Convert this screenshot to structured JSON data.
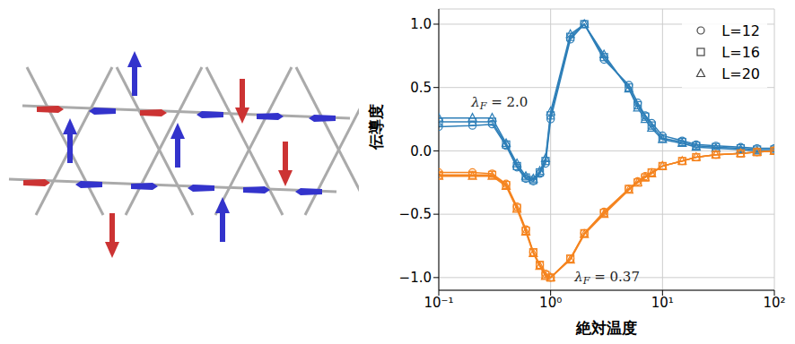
{
  "chart_data": {
    "type": "line",
    "xlabel": "絶対温度",
    "ylabel": "伝導度",
    "log": "x",
    "grid": true,
    "legend": "upper right",
    "xlim": [
      0.1,
      100
    ],
    "xticks": [
      {
        "value": 0.1,
        "label": "10⁻¹"
      },
      {
        "value": 1,
        "label": "10⁰"
      },
      {
        "value": 10,
        "label": "10¹"
      },
      {
        "value": 100,
        "label": "10²"
      }
    ],
    "ylim": [
      -1.1,
      1.12
    ],
    "yticks": [
      {
        "value": -1,
        "label": "−1.0"
      },
      {
        "value": -0.5,
        "label": "−0.5"
      },
      {
        "value": 0,
        "label": "0.0"
      },
      {
        "value": 0.5,
        "label": "0.5"
      },
      {
        "value": 1,
        "label": "1.0"
      }
    ],
    "x": [
      0.1,
      0.2,
      0.3,
      0.4,
      0.5,
      0.6,
      0.7,
      0.8,
      0.9,
      1.0,
      1.5,
      2,
      3,
      5,
      6,
      7,
      8,
      10,
      15,
      20,
      30,
      50,
      70,
      100
    ],
    "series": [
      {
        "name": "L=12",
        "marker": "circle",
        "color": "#2e7fb8",
        "values": [
          0.19,
          0.2,
          0.21,
          0.04,
          -0.13,
          -0.22,
          -0.24,
          -0.18,
          -0.1,
          0.25,
          0.88,
          1.0,
          0.72,
          0.52,
          0.38,
          0.28,
          0.22,
          0.12,
          0.08,
          0.05,
          0.04,
          0.03,
          0.02,
          0.02
        ]
      },
      {
        "name": "L=16",
        "marker": "square",
        "color": "#2e7fb8",
        "values": [
          0.23,
          0.23,
          0.23,
          0.05,
          -0.12,
          -0.21,
          -0.23,
          -0.17,
          -0.08,
          0.28,
          0.9,
          1.0,
          0.74,
          0.5,
          0.36,
          0.27,
          0.2,
          0.1,
          0.07,
          0.04,
          0.03,
          0.02,
          0.01,
          0.01
        ]
      },
      {
        "name": "L=20",
        "marker": "triangle",
        "color": "#2e7fb8",
        "values": [
          0.26,
          0.26,
          0.26,
          0.06,
          -0.1,
          -0.2,
          -0.22,
          -0.16,
          -0.06,
          0.31,
          0.92,
          1.0,
          0.76,
          0.49,
          0.34,
          0.25,
          0.18,
          0.09,
          0.06,
          0.03,
          0.02,
          0.01,
          0.0,
          0.0
        ]
      },
      {
        "name": "L=12",
        "marker": "circle",
        "color": "#f5841f",
        "values": [
          -0.17,
          -0.17,
          -0.18,
          -0.26,
          -0.44,
          -0.62,
          -0.8,
          -0.9,
          -0.97,
          -1.0,
          -0.85,
          -0.65,
          -0.48,
          -0.3,
          -0.24,
          -0.2,
          -0.17,
          -0.12,
          -0.08,
          -0.05,
          -0.03,
          -0.02,
          -0.01,
          0.0
        ]
      },
      {
        "name": "L=16",
        "marker": "square",
        "color": "#f5841f",
        "values": [
          -0.19,
          -0.19,
          -0.19,
          -0.27,
          -0.45,
          -0.63,
          -0.8,
          -0.9,
          -0.98,
          -1.0,
          -0.85,
          -0.65,
          -0.49,
          -0.3,
          -0.25,
          -0.21,
          -0.17,
          -0.12,
          -0.08,
          -0.05,
          -0.03,
          -0.02,
          -0.01,
          0.0
        ]
      },
      {
        "name": "L=20",
        "marker": "triangle",
        "color": "#f5841f",
        "values": [
          -0.2,
          -0.2,
          -0.2,
          -0.28,
          -0.46,
          -0.64,
          -0.81,
          -0.91,
          -0.99,
          -1.0,
          -0.86,
          -0.66,
          -0.5,
          -0.31,
          -0.25,
          -0.21,
          -0.18,
          -0.12,
          -0.08,
          -0.05,
          -0.03,
          -0.02,
          -0.01,
          0.0
        ]
      }
    ],
    "annotations": [
      {
        "text": "λF = 2.0",
        "x": 0.35,
        "y": 0.38
      },
      {
        "text": "λF = 0.37",
        "x": 3.2,
        "y": -1.0
      }
    ]
  }
}
